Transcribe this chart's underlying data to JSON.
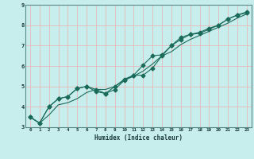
{
  "title": "",
  "xlabel": "Humidex (Indice chaleur)",
  "ylabel": "",
  "bg_color": "#c8eded",
  "grid_color": "#e8b8b8",
  "line_color": "#1a6b5a",
  "x_values": [
    0,
    1,
    2,
    3,
    4,
    5,
    6,
    7,
    8,
    9,
    10,
    11,
    12,
    13,
    14,
    15,
    16,
    17,
    18,
    19,
    20,
    21,
    22,
    23
  ],
  "line1_y": [
    3.5,
    3.2,
    4.0,
    4.4,
    4.5,
    4.9,
    5.0,
    4.85,
    4.65,
    5.0,
    5.35,
    5.55,
    6.05,
    6.5,
    6.55,
    7.0,
    7.4,
    7.55,
    7.65,
    7.85,
    8.0,
    8.3,
    8.5,
    8.65
  ],
  "line2_y": [
    3.5,
    3.2,
    4.0,
    4.4,
    4.5,
    4.9,
    5.0,
    4.75,
    4.65,
    4.85,
    5.3,
    5.55,
    5.55,
    5.9,
    6.5,
    7.0,
    7.3,
    7.55,
    7.6,
    7.8,
    8.0,
    8.3,
    8.5,
    8.6
  ],
  "line3_y": [
    3.5,
    3.2,
    3.6,
    4.1,
    4.2,
    4.4,
    4.7,
    4.85,
    4.85,
    5.0,
    5.3,
    5.5,
    5.75,
    6.1,
    6.5,
    6.7,
    7.05,
    7.3,
    7.5,
    7.7,
    7.9,
    8.1,
    8.35,
    8.55
  ],
  "ylim": [
    3.0,
    9.0
  ],
  "xlim": [
    -0.5,
    23.5
  ],
  "yticks": [
    3,
    4,
    5,
    6,
    7,
    8,
    9
  ],
  "xticks": [
    0,
    1,
    2,
    3,
    4,
    5,
    6,
    7,
    8,
    9,
    10,
    11,
    12,
    13,
    14,
    15,
    16,
    17,
    18,
    19,
    20,
    21,
    22,
    23
  ],
  "xtick_labels": [
    "0",
    "1",
    "2",
    "3",
    "4",
    "5",
    "6",
    "7",
    "8",
    "9",
    "10",
    "11",
    "12",
    "13",
    "14",
    "15",
    "16",
    "17",
    "18",
    "19",
    "20",
    "21",
    "22",
    "23"
  ]
}
